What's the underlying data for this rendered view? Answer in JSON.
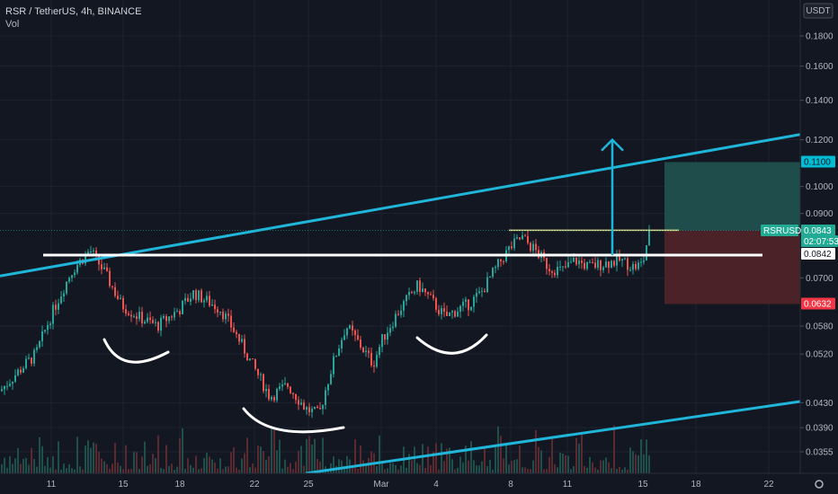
{
  "header": {
    "title": "RSR / TetherUS, 4h, BINANCE",
    "volume_label": "Vol"
  },
  "chart_data": {
    "type": "candlestick",
    "currency": "USDT",
    "price_axis": {
      "scale": "log",
      "ticks": [
        "0.1800",
        "0.1600",
        "0.1400",
        "0.1200",
        "0.1000",
        "0.0900",
        "0.0700",
        "0.0580",
        "0.0520",
        "0.0430",
        "0.0390",
        "0.0355"
      ]
    },
    "time_axis": {
      "ticks": [
        "11",
        "15",
        "18",
        "22",
        "25",
        "Mar",
        "4",
        "8",
        "11",
        "15",
        "18",
        "22"
      ]
    },
    "price_labels": [
      {
        "text": "0.1100",
        "role": "target",
        "color": "#00bcd4",
        "text_color": "#131722"
      },
      {
        "text": "RSRUSDT",
        "role": "symbol",
        "color": "#22ab94",
        "text_color": "#ffffff"
      },
      {
        "text": "0.0843",
        "role": "last-price",
        "color": "#22ab94",
        "text_color": "#ffffff"
      },
      {
        "text": "02:07:53",
        "role": "countdown",
        "color": "#22ab94",
        "text_color": "#ffffff"
      },
      {
        "text": "0.0842",
        "role": "entry",
        "color": "#ffffff",
        "text_color": "#131722"
      },
      {
        "text": "0.0632",
        "role": "stop",
        "color": "#f23645",
        "text_color": "#ffffff"
      }
    ],
    "position": {
      "entry": 0.0842,
      "target": 0.11,
      "stop": 0.0632
    },
    "overlays": {
      "neckline": 0.0765,
      "resistance": 0.0843,
      "channel": "ascending (cyan)",
      "pattern": "inverse head and shoulders"
    },
    "colors": {
      "up": "#26a69a",
      "down": "#ef5350",
      "channel": "#1fb6d9",
      "profit": "#1e4d4b",
      "loss": "#4a2228"
    }
  }
}
